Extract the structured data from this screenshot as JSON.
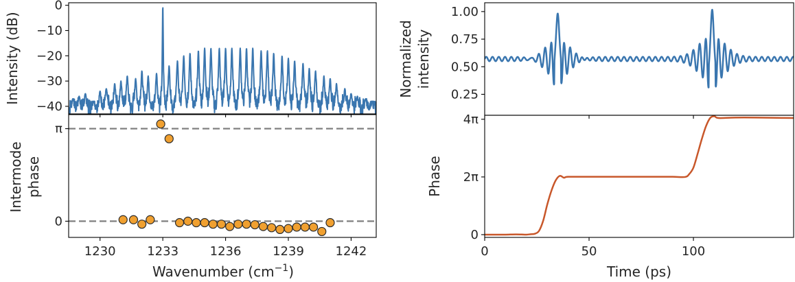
{
  "colors": {
    "blue": "#3a76af",
    "orange": "#c8572a",
    "marker": "#f0a030",
    "dash": "#7f7f7f"
  },
  "chart_data": [
    {
      "id": "spectrum",
      "type": "line",
      "xlabel": "",
      "ylabel": "Intensity (dB)",
      "xlim": [
        1228.5,
        1243.2
      ],
      "ylim": [
        -43,
        1
      ],
      "xticks": [
        1230,
        1233,
        1236,
        1239,
        1242
      ],
      "yticks": [
        0,
        -10,
        -20,
        -30,
        -40
      ],
      "ytick_labels": [
        "0",
        "−10",
        "−20",
        "−30",
        "−40"
      ],
      "mode_spacing_cm1": 0.333,
      "peaks": [
        {
          "x": 1228.7,
          "y": -37
        },
        {
          "x": 1229.0,
          "y": -36
        },
        {
          "x": 1229.3,
          "y": -35
        },
        {
          "x": 1229.7,
          "y": -38
        },
        {
          "x": 1230.0,
          "y": -34
        },
        {
          "x": 1230.3,
          "y": -33
        },
        {
          "x": 1230.7,
          "y": -31
        },
        {
          "x": 1231.0,
          "y": -30
        },
        {
          "x": 1231.3,
          "y": -28
        },
        {
          "x": 1231.7,
          "y": -29
        },
        {
          "x": 1232.0,
          "y": -26
        },
        {
          "x": 1232.3,
          "y": -28
        },
        {
          "x": 1232.7,
          "y": -27
        },
        {
          "x": 1233.0,
          "y": 0
        },
        {
          "x": 1233.3,
          "y": -24
        },
        {
          "x": 1233.7,
          "y": -22
        },
        {
          "x": 1234.0,
          "y": -20
        },
        {
          "x": 1234.3,
          "y": -19
        },
        {
          "x": 1234.7,
          "y": -18
        },
        {
          "x": 1235.0,
          "y": -17
        },
        {
          "x": 1235.3,
          "y": -17
        },
        {
          "x": 1235.7,
          "y": -17
        },
        {
          "x": 1236.0,
          "y": -17
        },
        {
          "x": 1236.3,
          "y": -17
        },
        {
          "x": 1236.7,
          "y": -17
        },
        {
          "x": 1237.0,
          "y": -17
        },
        {
          "x": 1237.3,
          "y": -17
        },
        {
          "x": 1237.7,
          "y": -18
        },
        {
          "x": 1238.0,
          "y": -18
        },
        {
          "x": 1238.3,
          "y": -19
        },
        {
          "x": 1238.7,
          "y": -20
        },
        {
          "x": 1239.0,
          "y": -21
        },
        {
          "x": 1239.3,
          "y": -22
        },
        {
          "x": 1239.7,
          "y": -23
        },
        {
          "x": 1240.0,
          "y": -25
        },
        {
          "x": 1240.3,
          "y": -26
        },
        {
          "x": 1240.7,
          "y": -28
        },
        {
          "x": 1241.0,
          "y": -29
        },
        {
          "x": 1241.3,
          "y": -31
        },
        {
          "x": 1241.7,
          "y": -33
        },
        {
          "x": 1242.0,
          "y": -35
        },
        {
          "x": 1242.3,
          "y": -36
        },
        {
          "x": 1242.7,
          "y": -37
        },
        {
          "x": 1243.0,
          "y": -38
        }
      ],
      "floor_db": [
        -43,
        -37
      ]
    },
    {
      "id": "intermode-phase",
      "type": "scatter",
      "xlabel": "Wavenumber (cm−1)",
      "xlabel_main": "Wavenumber (cm",
      "xlabel_sup": "−1",
      "xlabel_tail": ")",
      "ylabel": [
        "Intermode",
        "phase"
      ],
      "xlim": [
        1228.5,
        1243.2
      ],
      "ylim": [
        -0.55,
        3.62
      ],
      "xticks": [
        1230,
        1233,
        1236,
        1239,
        1242
      ],
      "xtick_labels": [
        "1230",
        "1233",
        "1236",
        "1239",
        "1242"
      ],
      "yticks": [
        0,
        3.14159
      ],
      "ytick_labels": [
        "0",
        "π"
      ],
      "reference_lines": [
        0,
        3.14159
      ],
      "x": [
        1231.1,
        1231.6,
        1232.0,
        1232.4,
        1232.9,
        1233.3,
        1233.8,
        1234.2,
        1234.6,
        1235.0,
        1235.4,
        1235.8,
        1236.2,
        1236.6,
        1237.0,
        1237.4,
        1237.8,
        1238.2,
        1238.6,
        1239.0,
        1239.4,
        1239.8,
        1240.2,
        1240.6,
        1241.0
      ],
      "y": [
        0.05,
        0.05,
        -0.1,
        0.05,
        3.3,
        2.8,
        -0.05,
        0.0,
        -0.05,
        -0.05,
        -0.1,
        -0.1,
        -0.18,
        -0.1,
        -0.1,
        -0.12,
        -0.18,
        -0.22,
        -0.28,
        -0.25,
        -0.2,
        -0.2,
        -0.2,
        -0.35,
        -0.05
      ]
    },
    {
      "id": "normalized-intensity",
      "type": "line",
      "xlabel": "",
      "ylabel": [
        "Normalized",
        "intensity"
      ],
      "xlim": [
        0,
        148
      ],
      "ylim": [
        0.06,
        1.08
      ],
      "yticks": [
        0.25,
        0.5,
        0.75,
        1.0
      ],
      "ytick_labels": [
        "0.25",
        "0.50",
        "0.75",
        "1.00"
      ],
      "baseline": 0.57,
      "ripple_amplitude": 0.02,
      "pulse_centers_ps": [
        35,
        109
      ],
      "pulse_peak": 1.0
    },
    {
      "id": "phase",
      "type": "line",
      "xlabel": "Time (ps)",
      "ylabel": "Phase",
      "xlim": [
        0,
        148
      ],
      "ylim": [
        -0.3,
        13.0
      ],
      "xticks": [
        0,
        50,
        100
      ],
      "xtick_labels": [
        "0",
        "50",
        "100"
      ],
      "yticks": [
        0,
        6.2832,
        12.5664
      ],
      "ytick_labels": [
        "0",
        "2π",
        "4π"
      ],
      "x": [
        0,
        5,
        10,
        15,
        20,
        22,
        24,
        26,
        28,
        30,
        32,
        34,
        36,
        38,
        40,
        50,
        60,
        70,
        80,
        90,
        96,
        98,
        100,
        102,
        104,
        106,
        108,
        110,
        112,
        120,
        130,
        140,
        148
      ],
      "y": [
        0.0,
        0.0,
        0.0,
        0.03,
        0.0,
        0.05,
        0.1,
        0.4,
        1.5,
        3.3,
        4.8,
        5.9,
        6.4,
        6.2,
        6.3,
        6.3,
        6.3,
        6.3,
        6.3,
        6.3,
        6.28,
        6.6,
        7.3,
        8.8,
        10.4,
        11.8,
        12.7,
        12.9,
        12.7,
        12.75,
        12.75,
        12.72,
        12.7
      ]
    }
  ]
}
